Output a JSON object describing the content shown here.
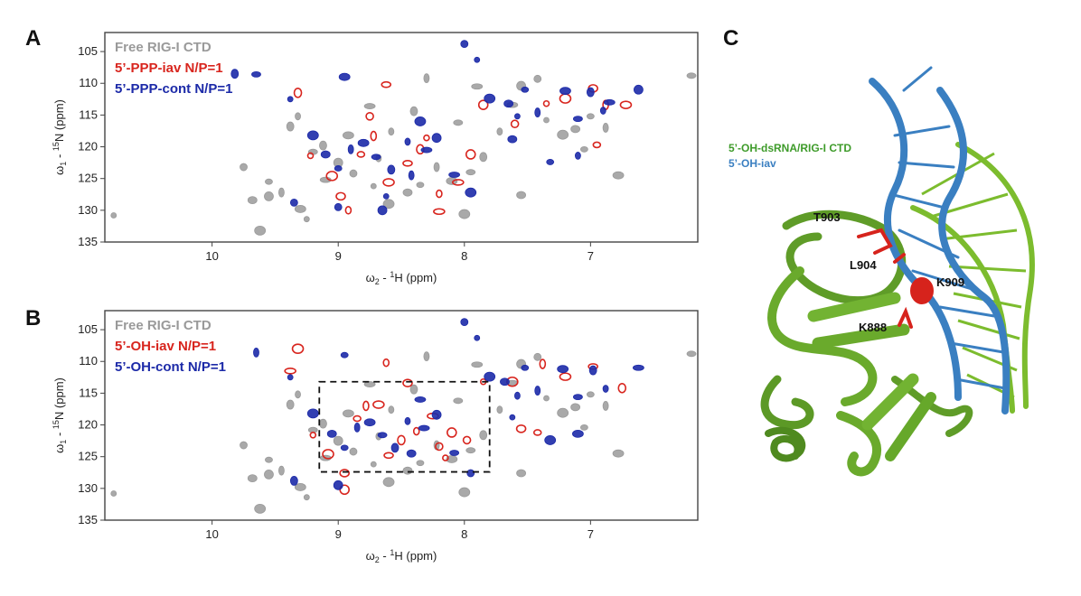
{
  "figure": {
    "panel_a_label": "A",
    "panel_b_label": "B",
    "panel_c_label": "C"
  },
  "axes": {
    "x_label_main": "ω",
    "x_label_sub": "2",
    "x_label_rest": " - ",
    "x_label_sup": "1",
    "x_label_end": "H (ppm)",
    "y_label_main": "ω",
    "y_label_sub": "1",
    "y_label_rest": " - ",
    "y_label_sup": "15",
    "y_label_end": "N (ppm)"
  },
  "chart_data": [
    {
      "type": "scatter",
      "panel": "A",
      "xlim": [
        10.85,
        6.15
      ],
      "ylim": [
        135,
        102
      ],
      "x_ticks": [
        "10",
        "9",
        "8",
        "7"
      ],
      "x_tick_values": [
        10,
        9,
        8,
        7
      ],
      "y_ticks": [
        "105",
        "110",
        "115",
        "120",
        "125",
        "130",
        "135"
      ],
      "y_tick_values": [
        105,
        110,
        115,
        120,
        125,
        130,
        135
      ],
      "legend": [
        {
          "label": "Free RIG-I CTD",
          "color": "#9a9a9a"
        },
        {
          "label": "5’-PPP-iav N/P=1",
          "color": "#d8251e"
        },
        {
          "label": "5’-PPP-cont N/P=1",
          "color": "#1c2aa8"
        }
      ],
      "series": [
        {
          "name": "Free RIG-I CTD",
          "color": "#9a9a9a",
          "points": [
            [
              10.78,
              130.8
            ],
            [
              9.62,
              133.2
            ],
            [
              9.68,
              128.4
            ],
            [
              9.55,
              125.5
            ],
            [
              9.45,
              127.2
            ],
            [
              9.3,
              129.8
            ],
            [
              9.2,
              120.8
            ],
            [
              9.38,
              116.8
            ],
            [
              9.32,
              115.2
            ],
            [
              9.1,
              125.2
            ],
            [
              9.0,
              122.5
            ],
            [
              8.88,
              124.2
            ],
            [
              8.72,
              126.2
            ],
            [
              8.6,
              129.0
            ],
            [
              8.45,
              127.2
            ],
            [
              8.35,
              126.0
            ],
            [
              8.22,
              123.2
            ],
            [
              8.1,
              125.4
            ],
            [
              7.95,
              124.0
            ],
            [
              7.85,
              121.6
            ],
            [
              7.72,
              117.6
            ],
            [
              7.62,
              113.4
            ],
            [
              7.55,
              110.4
            ],
            [
              7.42,
              109.3
            ],
            [
              7.35,
              115.8
            ],
            [
              7.22,
              118.1
            ],
            [
              7.12,
              117.2
            ],
            [
              7.05,
              120.4
            ],
            [
              6.88,
              117.0
            ],
            [
              6.78,
              124.5
            ],
            [
              6.2,
              108.8
            ],
            [
              8.4,
              114.4
            ],
            [
              8.58,
              117.6
            ],
            [
              8.75,
              113.6
            ],
            [
              9.55,
              127.8
            ],
            [
              9.75,
              123.2
            ],
            [
              9.25,
              131.4
            ],
            [
              8.0,
              130.6
            ],
            [
              7.55,
              127.6
            ],
            [
              7.0,
              115.2
            ],
            [
              8.3,
              109.2
            ],
            [
              8.92,
              118.2
            ],
            [
              8.05,
              116.2
            ],
            [
              9.12,
              119.8
            ],
            [
              8.68,
              121.8
            ],
            [
              7.9,
              110.5
            ]
          ]
        },
        {
          "name": "5’-PPP-iav N/P=1",
          "color": "#d8251e",
          "points": [
            [
              9.22,
              121.4
            ],
            [
              9.05,
              124.6
            ],
            [
              8.98,
              127.8
            ],
            [
              8.82,
              121.2
            ],
            [
              8.72,
              118.3
            ],
            [
              8.6,
              125.6
            ],
            [
              8.45,
              122.6
            ],
            [
              8.35,
              120.4
            ],
            [
              8.2,
              127.4
            ],
            [
              8.05,
              125.6
            ],
            [
              7.85,
              113.4
            ],
            [
              7.6,
              116.4
            ],
            [
              7.35,
              113.2
            ],
            [
              7.2,
              112.4
            ],
            [
              6.98,
              110.8
            ],
            [
              6.95,
              119.7
            ],
            [
              6.88,
              113.4
            ],
            [
              6.72,
              113.4
            ],
            [
              8.62,
              110.2
            ],
            [
              9.32,
              111.5
            ],
            [
              8.92,
              130.0
            ],
            [
              8.2,
              130.2
            ],
            [
              7.95,
              121.2
            ],
            [
              8.75,
              115.2
            ],
            [
              8.3,
              118.6
            ]
          ]
        },
        {
          "name": "5’-PPP-cont N/P=1",
          "color": "#1c2aa8",
          "points": [
            [
              9.38,
              112.5
            ],
            [
              9.2,
              118.2
            ],
            [
              9.1,
              121.2
            ],
            [
              9.0,
              123.4
            ],
            [
              8.9,
              120.4
            ],
            [
              8.8,
              119.4
            ],
            [
              8.7,
              121.6
            ],
            [
              8.58,
              123.6
            ],
            [
              8.45,
              119.2
            ],
            [
              8.3,
              120.5
            ],
            [
              8.22,
              118.6
            ],
            [
              8.0,
              103.8
            ],
            [
              7.9,
              106.3
            ],
            [
              7.8,
              112.4
            ],
            [
              7.65,
              113.2
            ],
            [
              7.52,
              111.0
            ],
            [
              7.42,
              114.6
            ],
            [
              7.2,
              111.2
            ],
            [
              7.1,
              115.6
            ],
            [
              7.0,
              111.4
            ],
            [
              6.9,
              114.3
            ],
            [
              6.85,
              113.0
            ],
            [
              6.62,
              111.0
            ],
            [
              9.0,
              129.5
            ],
            [
              8.62,
              127.8
            ],
            [
              7.95,
              127.2
            ],
            [
              7.62,
              118.8
            ],
            [
              7.32,
              122.4
            ],
            [
              8.42,
              124.5
            ],
            [
              8.95,
              109.0
            ],
            [
              9.65,
              108.6
            ],
            [
              9.82,
              108.5
            ],
            [
              7.1,
              121.4
            ],
            [
              8.08,
              124.4
            ],
            [
              8.65,
              130.0
            ],
            [
              9.35,
              128.8
            ],
            [
              7.58,
              115.2
            ],
            [
              8.35,
              116.0
            ]
          ]
        }
      ]
    },
    {
      "type": "scatter",
      "panel": "B",
      "xlim": [
        10.85,
        6.15
      ],
      "ylim": [
        135,
        102
      ],
      "x_ticks": [
        "10",
        "9",
        "8",
        "7"
      ],
      "x_tick_values": [
        10,
        9,
        8,
        7
      ],
      "y_ticks": [
        "105",
        "110",
        "115",
        "120",
        "125",
        "130",
        "135"
      ],
      "y_tick_values": [
        105,
        110,
        115,
        120,
        125,
        130,
        135
      ],
      "legend": [
        {
          "label": "Free RIG-I CTD",
          "color": "#9a9a9a"
        },
        {
          "label": "5’-OH-iav N/P=1",
          "color": "#d8251e"
        },
        {
          "label": "5’-OH-cont N/P=1",
          "color": "#1c2aa8"
        }
      ],
      "highlight_box": {
        "x": [
          9.15,
          7.8
        ],
        "y": [
          113.2,
          127.4
        ]
      },
      "series": [
        {
          "name": "Free RIG-I CTD",
          "color": "#9a9a9a",
          "points": [
            [
              10.78,
              130.8
            ],
            [
              9.62,
              133.2
            ],
            [
              9.68,
              128.4
            ],
            [
              9.55,
              125.5
            ],
            [
              9.45,
              127.2
            ],
            [
              9.3,
              129.8
            ],
            [
              9.2,
              120.8
            ],
            [
              9.38,
              116.8
            ],
            [
              9.32,
              115.2
            ],
            [
              9.1,
              125.2
            ],
            [
              9.0,
              122.5
            ],
            [
              8.88,
              124.2
            ],
            [
              8.72,
              126.2
            ],
            [
              8.6,
              129.0
            ],
            [
              8.45,
              127.2
            ],
            [
              8.35,
              126.0
            ],
            [
              8.22,
              123.2
            ],
            [
              8.1,
              125.4
            ],
            [
              7.95,
              124.0
            ],
            [
              7.85,
              121.6
            ],
            [
              7.72,
              117.6
            ],
            [
              7.62,
              113.4
            ],
            [
              7.55,
              110.4
            ],
            [
              7.42,
              109.3
            ],
            [
              7.35,
              115.8
            ],
            [
              7.22,
              118.1
            ],
            [
              7.12,
              117.2
            ],
            [
              7.05,
              120.4
            ],
            [
              6.88,
              117.0
            ],
            [
              6.78,
              124.5
            ],
            [
              6.2,
              108.8
            ],
            [
              8.4,
              114.4
            ],
            [
              8.58,
              117.6
            ],
            [
              8.75,
              113.6
            ],
            [
              9.55,
              127.8
            ],
            [
              9.75,
              123.2
            ],
            [
              9.25,
              131.4
            ],
            [
              8.0,
              130.6
            ],
            [
              7.55,
              127.6
            ],
            [
              7.0,
              115.2
            ],
            [
              8.3,
              109.2
            ],
            [
              8.92,
              118.2
            ],
            [
              8.05,
              116.2
            ],
            [
              9.12,
              119.8
            ],
            [
              8.68,
              121.8
            ],
            [
              7.9,
              110.5
            ]
          ]
        },
        {
          "name": "5’-OH-iav N/P=1",
          "color": "#d8251e",
          "points": [
            [
              9.2,
              121.6
            ],
            [
              9.08,
              124.6
            ],
            [
              8.95,
              127.6
            ],
            [
              8.85,
              119.0
            ],
            [
              8.78,
              117.0
            ],
            [
              8.68,
              116.8
            ],
            [
              8.6,
              124.8
            ],
            [
              8.5,
              122.4
            ],
            [
              8.38,
              121.0
            ],
            [
              8.25,
              118.6
            ],
            [
              8.1,
              121.2
            ],
            [
              7.98,
              122.4
            ],
            [
              7.85,
              113.2
            ],
            [
              7.62,
              113.2
            ],
            [
              7.55,
              120.6
            ],
            [
              7.42,
              121.2
            ],
            [
              7.38,
              110.4
            ],
            [
              7.2,
              112.4
            ],
            [
              6.98,
              110.8
            ],
            [
              6.75,
              114.2
            ],
            [
              8.62,
              110.2
            ],
            [
              9.38,
              111.5
            ],
            [
              8.95,
              130.2
            ],
            [
              8.2,
              123.4
            ],
            [
              8.15,
              125.2
            ],
            [
              9.32,
              108.0
            ],
            [
              8.45,
              113.4
            ]
          ]
        },
        {
          "name": "5’-OH-cont N/P=1",
          "color": "#1c2aa8",
          "points": [
            [
              9.38,
              112.5
            ],
            [
              9.2,
              118.2
            ],
            [
              9.05,
              121.4
            ],
            [
              8.95,
              123.6
            ],
            [
              8.85,
              120.4
            ],
            [
              8.75,
              119.6
            ],
            [
              8.65,
              121.6
            ],
            [
              8.55,
              123.6
            ],
            [
              8.45,
              119.4
            ],
            [
              8.32,
              120.5
            ],
            [
              8.22,
              118.4
            ],
            [
              8.0,
              103.8
            ],
            [
              7.9,
              106.3
            ],
            [
              7.8,
              112.4
            ],
            [
              7.68,
              113.2
            ],
            [
              7.52,
              111.0
            ],
            [
              7.42,
              114.6
            ],
            [
              7.22,
              111.2
            ],
            [
              7.1,
              115.6
            ],
            [
              6.98,
              111.4
            ],
            [
              6.88,
              114.3
            ],
            [
              6.62,
              111.0
            ],
            [
              9.0,
              129.5
            ],
            [
              7.95,
              127.6
            ],
            [
              7.62,
              118.8
            ],
            [
              7.32,
              122.4
            ],
            [
              8.42,
              124.5
            ],
            [
              8.95,
              109.0
            ],
            [
              9.65,
              108.6
            ],
            [
              7.1,
              121.4
            ],
            [
              8.08,
              124.4
            ],
            [
              9.35,
              128.8
            ],
            [
              7.58,
              115.4
            ],
            [
              8.35,
              116.0
            ]
          ]
        }
      ]
    }
  ],
  "structure": {
    "legend_complex": "5’-OH-dsRNA/RIG-I CTD",
    "legend_complex_color": "#3e9b2a",
    "legend_iav": "5’-OH-iav",
    "legend_iav_color": "#3a7fc1",
    "residues": [
      "T903",
      "L904",
      "K909",
      "K888"
    ],
    "protein_color": "#6aaa2c",
    "rna_complex_color": "#7cbc2e",
    "rna_iav_color": "#3a7fc1",
    "highlight_color": "#d6231c"
  }
}
